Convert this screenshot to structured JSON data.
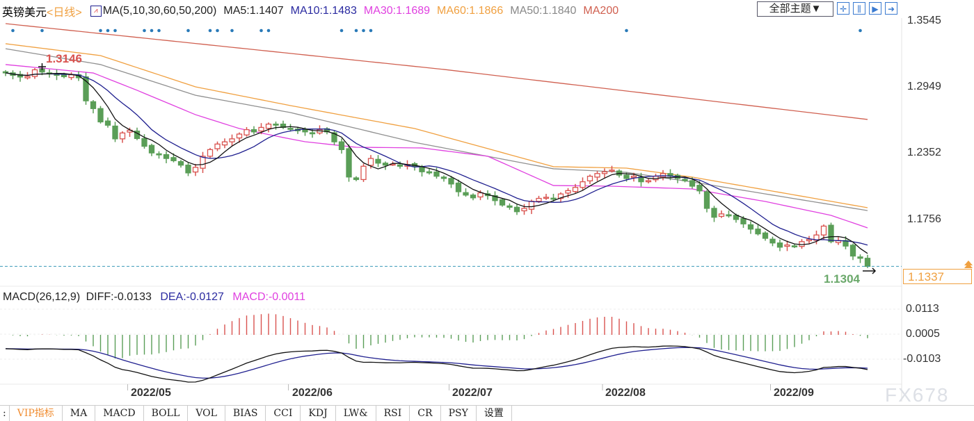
{
  "header": {
    "symbol": "英镑美元",
    "period": "<日线>",
    "ma_params": "MA(5,10,30,60,50,200)",
    "ma5": "MA5:1.1407",
    "ma10": "MA10:1.1483",
    "ma30": "MA30:1.1689",
    "ma60": "MA60:1.1866",
    "ma50": "MA50:1.1840",
    "ma200": "MA200",
    "theme_select": "全部主题▼",
    "toolbar_icons": [
      "crosshair-icon",
      "bars-icon",
      "step-icon",
      "forward-icon"
    ]
  },
  "colors": {
    "up": "#d9534f",
    "down": "#5a9e57",
    "ma5": "#111111",
    "ma10": "#1f1f8f",
    "ma30": "#e040e0",
    "ma60": "#f0a040",
    "ma50": "#909090",
    "ma200": "#d06050",
    "current": "#f0a040",
    "marker": "#2a7ab8"
  },
  "price_axis": {
    "ticks": [
      "1.3545",
      "1.2949",
      "1.2352",
      "1.1756"
    ],
    "current_price": "1.1337",
    "high_label": "1.3146",
    "low_label": "1.1304"
  },
  "macd": {
    "title": "MACD(26,12,9)",
    "diff": "DIFF:-0.0133",
    "dea": "DEA:-0.0127",
    "macd": "MACD:-0.0011",
    "ticks": [
      "0.0113",
      "0.0005",
      "-0.0103"
    ]
  },
  "chart_data": {
    "type": "candlestick",
    "symbol": "英镑美元",
    "month_ticks": [
      {
        "label": "2022/05",
        "index": 17
      },
      {
        "label": "2022/06",
        "index": 39
      },
      {
        "label": "2022/07",
        "index": 61
      },
      {
        "label": "2022/08",
        "index": 82
      },
      {
        "label": "2022/09",
        "index": 105
      }
    ],
    "ylim": [
      1.1304,
      1.3545
    ],
    "close": [
      1.3082,
      1.306,
      1.3045,
      1.305,
      1.311,
      1.309,
      1.3075,
      1.306,
      1.3048,
      1.3065,
      1.3038,
      1.283,
      1.276,
      1.264,
      1.261,
      1.2487,
      1.254,
      1.2565,
      1.249,
      1.242,
      1.236,
      1.2345,
      1.231,
      1.229,
      1.225,
      1.218,
      1.223,
      1.233,
      1.239,
      1.244,
      1.246,
      1.2487,
      1.253,
      1.257,
      1.255,
      1.259,
      1.262,
      1.2612,
      1.259,
      1.2575,
      1.256,
      1.255,
      1.254,
      1.257,
      1.255,
      1.246,
      1.239,
      1.2143,
      1.212,
      1.224,
      1.231,
      1.2268,
      1.225,
      1.226,
      1.224,
      1.2255,
      1.2237,
      1.219,
      1.218,
      1.215,
      1.213,
      1.208,
      1.201,
      1.198,
      1.1955,
      1.2,
      1.1975,
      1.193,
      1.189,
      1.187,
      1.183,
      1.186,
      1.1924,
      1.195,
      1.196,
      1.195,
      1.199,
      1.202,
      1.2049,
      1.21,
      1.215,
      1.2174,
      1.219,
      1.2205,
      1.216,
      1.213,
      1.215,
      1.21,
      1.211,
      1.215,
      1.2174,
      1.215,
      1.213,
      1.211,
      1.206,
      1.2018,
      1.186,
      1.178,
      1.181,
      1.1798,
      1.176,
      1.172,
      1.1673,
      1.163,
      1.159,
      1.1548,
      1.151,
      1.153,
      1.1517,
      1.156,
      1.158,
      1.162,
      1.17,
      1.156,
      1.157,
      1.152,
      1.143,
      1.141,
      1.1337
    ],
    "ma_long": {
      "ma30": [
        [
          0,
          1.3157
        ],
        [
          12,
          1.3081
        ],
        [
          18,
          1.2925
        ],
        [
          26,
          1.2705
        ],
        [
          32,
          1.258
        ],
        [
          38,
          1.2499
        ],
        [
          41,
          1.2461
        ],
        [
          48,
          1.2411
        ],
        [
          57,
          1.2405
        ],
        [
          66,
          1.233
        ],
        [
          75,
          1.2066
        ],
        [
          83,
          1.206
        ],
        [
          94,
          1.2035
        ],
        [
          104,
          1.1922
        ],
        [
          113,
          1.1797
        ],
        [
          118,
          1.1684
        ]
      ],
      "ma60": [
        [
          0,
          1.3345
        ],
        [
          13,
          1.3238
        ],
        [
          26,
          1.2956
        ],
        [
          39,
          1.2787
        ],
        [
          56,
          1.258
        ],
        [
          75,
          1.2236
        ],
        [
          85,
          1.2223
        ],
        [
          94,
          1.2142
        ],
        [
          118,
          1.1866
        ]
      ],
      "ma50": [
        [
          0,
          1.33
        ],
        [
          13,
          1.3157
        ],
        [
          26,
          1.288
        ],
        [
          39,
          1.2724
        ],
        [
          56,
          1.2455
        ],
        [
          75,
          1.2217
        ],
        [
          85,
          1.2185
        ],
        [
          94,
          1.2098
        ],
        [
          118,
          1.184
        ]
      ],
      "ma200": [
        [
          0,
          1.3526
        ],
        [
          60,
          1.3113
        ],
        [
          118,
          1.2662
        ]
      ]
    },
    "signal_markers": [
      1,
      5,
      13,
      14,
      15,
      19,
      20,
      21,
      25,
      28,
      29,
      31,
      35,
      36,
      46,
      48,
      49,
      50,
      85,
      117
    ]
  },
  "watermark": "FX678",
  "tabs": [
    "VIP指标",
    "MA",
    "MACD",
    "BOLL",
    "VOL",
    "BIAS",
    "CCI",
    "KDJ",
    "LW&",
    "RSI",
    "CR",
    "PSY",
    "设置"
  ]
}
